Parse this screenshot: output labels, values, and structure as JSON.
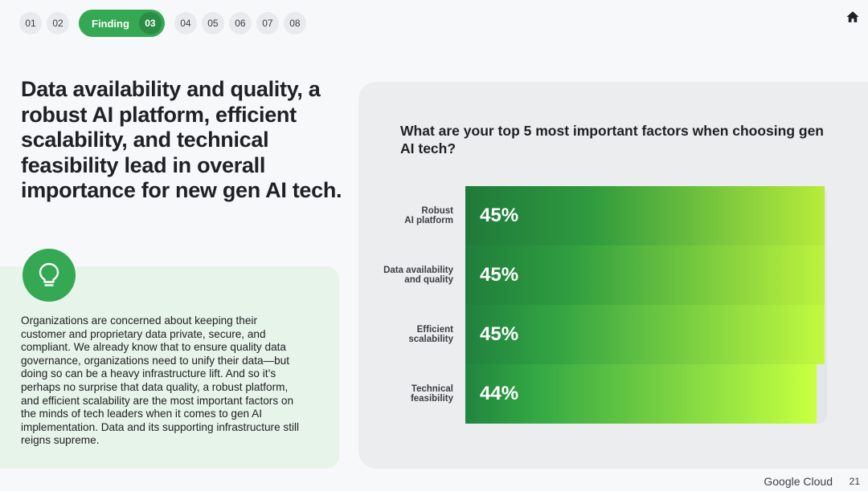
{
  "nav": {
    "pages": [
      "01",
      "02",
      "03",
      "04",
      "05",
      "06",
      "07",
      "08"
    ],
    "active_label": "Finding",
    "active_number": "03"
  },
  "headline": "Data availability and quality, a robust AI platform, efficient scalability, and technical feasibility lead in overall importance for new gen AI tech.",
  "body_text": "Organizations are concerned about keeping their customer and proprietary data private, secure, and compliant. We already know that to ensure quality data governance, organizations need to unify their data—but doing so can be a heavy infrastructure lift. And so it’s perhaps no surprise that data quality, a robust platform, and efficient scalability are the most important factors on the minds of tech leaders when it comes to gen AI implementation. Data and its supporting infrastructure still reigns supreme.",
  "chart_data": {
    "type": "bar",
    "orientation": "horizontal",
    "title": "What are your top 5 most important factors when choosing gen AI tech?",
    "categories": [
      "Robust\nAI platform",
      "Data availability\nand quality",
      "Efficient\nscalability",
      "Technical\nfeasibility"
    ],
    "values": [
      45,
      45,
      45,
      44
    ],
    "value_labels": [
      "45%",
      "45%",
      "45%",
      "44%"
    ],
    "xlim": [
      0,
      45.3
    ],
    "xlabel": "",
    "ylabel": "",
    "grid": false
  },
  "colors": {
    "accent": "#34a853",
    "bar_dark": "#1e7a3a",
    "bar_light": "#b8ec3c"
  },
  "footer": {
    "brand": "Google Cloud",
    "page_number": "21"
  }
}
